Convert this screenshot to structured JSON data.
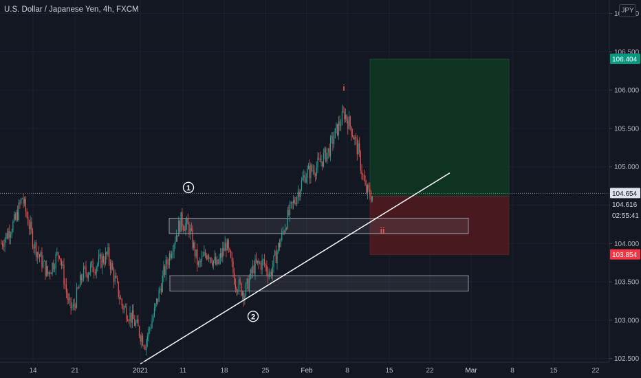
{
  "chart_title": "U.S. Dollar / Japanese Yen, 4h, FXCM",
  "currency_button": "JPY",
  "chart_data": {
    "type": "candlestick",
    "symbol": "U.S. Dollar / Japanese Yen",
    "interval": "4h",
    "source": "FXCM",
    "ylim": [
      102.4,
      107.0
    ],
    "y_ticks": [
      "102.500",
      "103.000",
      "103.500",
      "104.000",
      "104.500",
      "105.000",
      "105.500",
      "106.000",
      "106.500",
      "107.000"
    ],
    "x_ticks": [
      "14",
      "21",
      "2021",
      "11",
      "18",
      "25",
      "Feb",
      "8",
      "15",
      "22",
      "Mar",
      "8",
      "15",
      "22"
    ],
    "colors": {
      "up": "#26a69a",
      "down": "#ef5350",
      "background": "#131722",
      "target_zone": "#0e3320",
      "stop_zone": "#481a20"
    },
    "price_badges": {
      "target": {
        "label": "106.404",
        "value": 106.404,
        "color": "#089981"
      },
      "last": {
        "label": "104.654",
        "value": 104.654,
        "color": "#e0e3eb"
      },
      "entry": {
        "label": "104.616",
        "value": 104.616
      },
      "countdown": {
        "label": "02:55:41"
      },
      "stop": {
        "label": "103.854",
        "value": 103.854,
        "color": "#f23645"
      }
    },
    "support_zones": [
      {
        "from": 104.13,
        "to": 104.33
      },
      {
        "from": 103.38,
        "to": 103.58
      }
    ],
    "wave_labels": [
      {
        "text": "1",
        "style": "circled",
        "price": 104.73
      },
      {
        "text": "2",
        "style": "circled",
        "price": 103.05
      },
      {
        "text": "i",
        "style": "plain",
        "price": 106.03
      },
      {
        "text": "ii",
        "style": "plain",
        "price": 104.17
      }
    ],
    "trendline": {
      "start_price": 102.43,
      "end_price": 104.92
    },
    "position": {
      "type": "long",
      "entry": 104.616,
      "target": 106.404,
      "stop": 103.854
    },
    "ohlc_anchors": [
      {
        "t": 0,
        "price": 104.0
      },
      {
        "t": 12,
        "price": 104.3
      },
      {
        "t": 18,
        "price": 104.6
      },
      {
        "t": 28,
        "price": 104.0
      },
      {
        "t": 40,
        "price": 103.6
      },
      {
        "t": 50,
        "price": 103.9
      },
      {
        "t": 58,
        "price": 103.2
      },
      {
        "t": 62,
        "price": 103.15
      },
      {
        "t": 70,
        "price": 103.6
      },
      {
        "t": 80,
        "price": 103.7
      },
      {
        "t": 92,
        "price": 103.85
      },
      {
        "t": 104,
        "price": 103.2
      },
      {
        "t": 114,
        "price": 103.0
      },
      {
        "t": 124,
        "price": 102.7
      },
      {
        "t": 132,
        "price": 103.1
      },
      {
        "t": 140,
        "price": 103.6
      },
      {
        "t": 148,
        "price": 104.0
      },
      {
        "t": 155,
        "price": 104.3
      },
      {
        "t": 162,
        "price": 104.2
      },
      {
        "t": 170,
        "price": 103.7
      },
      {
        "t": 178,
        "price": 103.9
      },
      {
        "t": 186,
        "price": 103.7
      },
      {
        "t": 194,
        "price": 104.0
      },
      {
        "t": 202,
        "price": 103.5
      },
      {
        "t": 210,
        "price": 103.35
      },
      {
        "t": 218,
        "price": 103.7
      },
      {
        "t": 226,
        "price": 103.75
      },
      {
        "t": 232,
        "price": 103.6
      },
      {
        "t": 240,
        "price": 104.0
      },
      {
        "t": 246,
        "price": 104.3
      },
      {
        "t": 254,
        "price": 104.6
      },
      {
        "t": 262,
        "price": 104.9
      },
      {
        "t": 272,
        "price": 105.0
      },
      {
        "t": 282,
        "price": 105.2
      },
      {
        "t": 290,
        "price": 105.5
      },
      {
        "t": 296,
        "price": 105.7
      },
      {
        "t": 302,
        "price": 105.5
      },
      {
        "t": 308,
        "price": 105.2
      },
      {
        "t": 314,
        "price": 104.7
      },
      {
        "t": 320,
        "price": 104.62
      }
    ]
  }
}
